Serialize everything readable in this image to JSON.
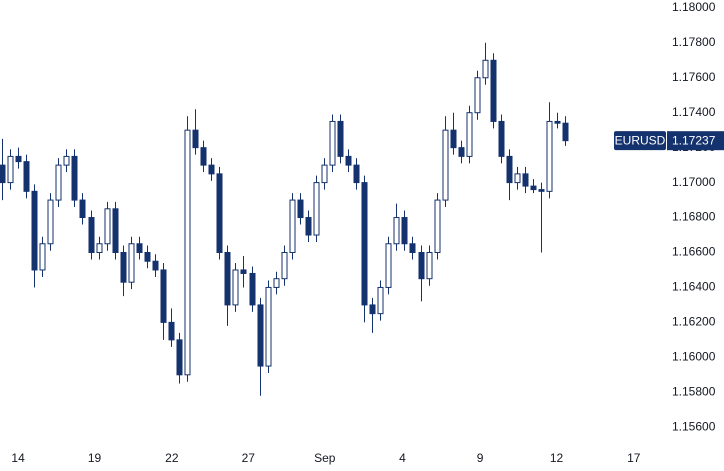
{
  "chart_data": {
    "type": "candlestick",
    "series": [
      {
        "name": "EURUSD",
        "color": "#14326e",
        "candles": [
          [
            1.171,
            1.1725,
            1.169,
            1.17
          ],
          [
            1.17,
            1.1719,
            1.1696,
            1.1715
          ],
          [
            1.1715,
            1.172,
            1.1708,
            1.1712
          ],
          [
            1.1712,
            1.1716,
            1.1691,
            1.1695
          ],
          [
            1.1695,
            1.1699,
            1.164,
            1.165
          ],
          [
            1.165,
            1.1669,
            1.1646,
            1.1665
          ],
          [
            1.1665,
            1.1694,
            1.1661,
            1.169
          ],
          [
            1.169,
            1.1714,
            1.1686,
            1.171
          ],
          [
            1.171,
            1.1719,
            1.1706,
            1.1715
          ],
          [
            1.1715,
            1.1719,
            1.1686,
            1.169
          ],
          [
            1.169,
            1.1694,
            1.1676,
            1.168
          ],
          [
            1.168,
            1.1684,
            1.1656,
            1.166
          ],
          [
            1.166,
            1.1669,
            1.1656,
            1.1665
          ],
          [
            1.1665,
            1.1689,
            1.1661,
            1.1685
          ],
          [
            1.1685,
            1.1689,
            1.1656,
            1.166
          ],
          [
            1.166,
            1.1664,
            1.1635,
            1.1643
          ],
          [
            1.1643,
            1.1669,
            1.1639,
            1.1665
          ],
          [
            1.1665,
            1.1669,
            1.1656,
            1.166
          ],
          [
            1.166,
            1.1664,
            1.1651,
            1.1655
          ],
          [
            1.1655,
            1.1659,
            1.1646,
            1.165
          ],
          [
            1.165,
            1.1654,
            1.161,
            1.162
          ],
          [
            1.162,
            1.1628,
            1.1606,
            1.161
          ],
          [
            1.161,
            1.1614,
            1.1585,
            1.159
          ],
          [
            1.159,
            1.1738,
            1.1586,
            1.173
          ],
          [
            1.173,
            1.1742,
            1.1716,
            1.172
          ],
          [
            1.172,
            1.1724,
            1.1706,
            1.171
          ],
          [
            1.171,
            1.1714,
            1.1701,
            1.1705
          ],
          [
            1.1705,
            1.1709,
            1.1656,
            1.166
          ],
          [
            1.166,
            1.1664,
            1.1618,
            1.163
          ],
          [
            1.163,
            1.1654,
            1.1626,
            1.165
          ],
          [
            1.165,
            1.1658,
            1.164,
            1.1648
          ],
          [
            1.1648,
            1.1652,
            1.1626,
            1.163
          ],
          [
            1.163,
            1.1634,
            1.1578,
            1.1595
          ],
          [
            1.1595,
            1.1644,
            1.1591,
            1.164
          ],
          [
            1.164,
            1.1649,
            1.1636,
            1.1645
          ],
          [
            1.1645,
            1.1664,
            1.1641,
            1.166
          ],
          [
            1.166,
            1.1694,
            1.1656,
            1.169
          ],
          [
            1.169,
            1.1694,
            1.1676,
            1.168
          ],
          [
            1.168,
            1.1684,
            1.1666,
            1.167
          ],
          [
            1.167,
            1.1704,
            1.1666,
            1.17
          ],
          [
            1.17,
            1.1714,
            1.1696,
            1.171
          ],
          [
            1.171,
            1.1739,
            1.1706,
            1.1735
          ],
          [
            1.1735,
            1.1739,
            1.1711,
            1.1715
          ],
          [
            1.1715,
            1.1719,
            1.1706,
            1.171
          ],
          [
            1.171,
            1.1714,
            1.1696,
            1.17
          ],
          [
            1.17,
            1.1704,
            1.162,
            1.163
          ],
          [
            1.163,
            1.1634,
            1.1614,
            1.1625
          ],
          [
            1.1625,
            1.1644,
            1.1621,
            1.164
          ],
          [
            1.164,
            1.1669,
            1.1636,
            1.1665
          ],
          [
            1.1665,
            1.1688,
            1.1661,
            1.168
          ],
          [
            1.168,
            1.1684,
            1.1661,
            1.1665
          ],
          [
            1.1665,
            1.1669,
            1.1656,
            1.166
          ],
          [
            1.166,
            1.1664,
            1.1632,
            1.1645
          ],
          [
            1.1645,
            1.1664,
            1.1641,
            1.166
          ],
          [
            1.166,
            1.1694,
            1.1656,
            1.169
          ],
          [
            1.169,
            1.1738,
            1.1686,
            1.173
          ],
          [
            1.173,
            1.174,
            1.1716,
            1.172
          ],
          [
            1.172,
            1.1724,
            1.1711,
            1.1715
          ],
          [
            1.1715,
            1.1744,
            1.1711,
            1.174
          ],
          [
            1.174,
            1.1764,
            1.1736,
            1.176
          ],
          [
            1.176,
            1.178,
            1.1756,
            1.177
          ],
          [
            1.177,
            1.1774,
            1.1731,
            1.1735
          ],
          [
            1.1735,
            1.1739,
            1.1711,
            1.1715
          ],
          [
            1.1715,
            1.1719,
            1.169,
            1.17
          ],
          [
            1.17,
            1.1709,
            1.1696,
            1.1705
          ],
          [
            1.1705,
            1.1709,
            1.1694,
            1.1698
          ],
          [
            1.1698,
            1.1702,
            1.1694,
            1.1696
          ],
          [
            1.1696,
            1.17,
            1.166,
            1.1695
          ],
          [
            1.1695,
            1.1746,
            1.1691,
            1.1735
          ],
          [
            1.1735,
            1.174,
            1.1731,
            1.1734
          ],
          [
            1.1734,
            1.1738,
            1.1721,
            1.1724
          ]
        ]
      }
    ],
    "xlim": [
      -0.25,
      82.25
    ],
    "xticks": [
      {
        "value": 2,
        "label": "14"
      },
      {
        "value": 11.5,
        "label": "19"
      },
      {
        "value": 21.1,
        "label": "22"
      },
      {
        "value": 30.6,
        "label": "27"
      },
      {
        "value": 40.1,
        "label": "Sep"
      },
      {
        "value": 49.75,
        "label": "4"
      },
      {
        "value": 59.4,
        "label": "9"
      },
      {
        "value": 68.9,
        "label": "12"
      },
      {
        "value": 78.5,
        "label": "17"
      }
    ],
    "ylim": [
      1.15504,
      1.18045
    ],
    "yticks": [
      {
        "value": 1.18,
        "label": "1.18000"
      },
      {
        "value": 1.178,
        "label": "1.17800"
      },
      {
        "value": 1.176,
        "label": "1.17600"
      },
      {
        "value": 1.174,
        "label": "1.17400"
      },
      {
        "value": 1.172,
        "label": "1.17200"
      },
      {
        "value": 1.17,
        "label": "1.17000"
      },
      {
        "value": 1.168,
        "label": "1.16800"
      },
      {
        "value": 1.166,
        "label": "1.16600"
      },
      {
        "value": 1.164,
        "label": "1.16400"
      },
      {
        "value": 1.162,
        "label": "1.16200"
      },
      {
        "value": 1.16,
        "label": "1.16000"
      },
      {
        "value": 1.158,
        "label": "1.15800"
      },
      {
        "value": 1.156,
        "label": "1.15600"
      }
    ],
    "last_price": {
      "symbol": "EURUSD",
      "value": 1.17237,
      "label": "1.17237"
    }
  }
}
